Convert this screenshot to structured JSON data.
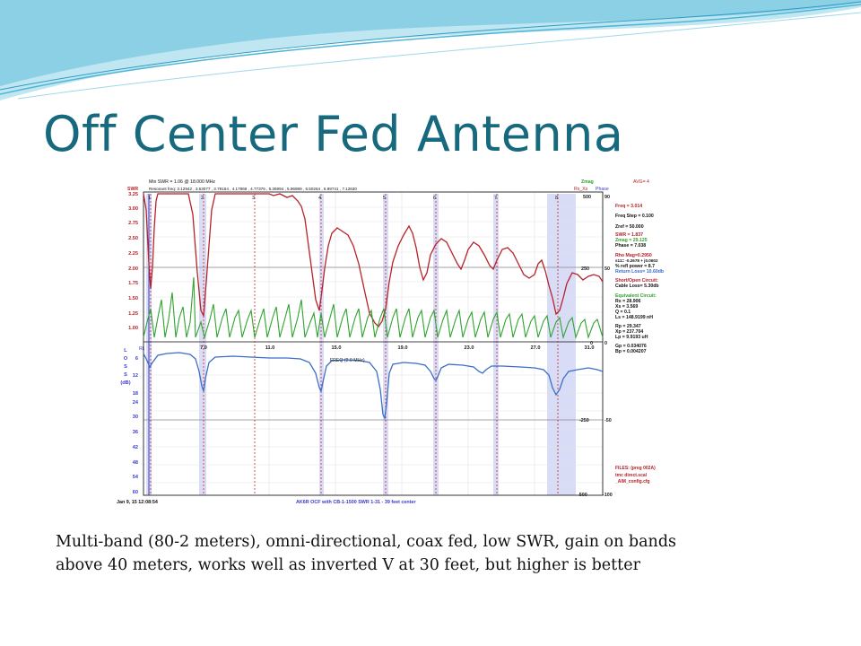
{
  "slide": {
    "title": "Off Center Fed Antenna",
    "caption_line1": "Multi-band (80-2 meters), omni-directional, coax fed, low SWR, gain on bands",
    "caption_line2": "above 40 meters, works well as inverted V at 30 feet, but higher is better"
  },
  "colors": {
    "title": "#17697e",
    "wave_light": "#bfe6f1",
    "wave_mid": "#4eb5d6",
    "swr_trace": "#b62229",
    "zmag_trace": "#2fa32f",
    "rl_trace": "#3a6ec7",
    "band_shade": "#d8dcf6",
    "marker": "#c42a2a"
  },
  "analyzer": {
    "header": {
      "swr_label": "SWR",
      "min_swr": "Min SWR =   1.06 @ 18.000 MHz",
      "resonant": "Resonant freq:  3.12942 , 3.53077 , 3.79164 , 4.17868 , 4.77376 , 5.36994 , 5.96989 , 6.50264 , 6.89741 , 7.12630",
      "zmag_label": "Zmag",
      "rsxs_label": "Rs_Xs",
      "phase_label": "Phase",
      "avg_label": "AVG=  4"
    },
    "swr_ticks": [
      "3.25",
      "3.00",
      "2.75",
      "2.50",
      "2.25",
      "2.00",
      "1.75",
      "1.50",
      "1.25",
      "1.00"
    ],
    "loss_axis_label": [
      "L",
      "O",
      "S",
      "S",
      "(dB)"
    ],
    "loss_ticks": [
      "6",
      "12",
      "18",
      "24",
      "30",
      "36",
      "42",
      "48",
      "54",
      "60"
    ],
    "freq_ticks": [
      "7.0",
      "11.0",
      "15.0",
      "19.0",
      "23.0",
      "27.0",
      "31.0"
    ],
    "freq_label": "FREQ (2.0 MHz)",
    "rl_label": "RL",
    "marker_numbers": [
      "1",
      "2",
      "3",
      "4",
      "5",
      "6",
      "7",
      "8"
    ],
    "right_axis": {
      "z_top": "500",
      "p_top": "90",
      "z_mid": "250",
      "p_mid": "50",
      "z_zero": "0",
      "p_zero": "0",
      "z_low": "-250",
      "p_low": "-50",
      "z_bottom": "-500",
      "p_bottom": "-100"
    },
    "readout": [
      {
        "text": "Freq = 3.014",
        "color": "#b62229"
      },
      {
        "text": "Freq Step = 0.100",
        "color": "#111111"
      },
      {
        "text": "Zref =   50.000",
        "color": "#111111"
      },
      {
        "text": "SWR  =   1.837",
        "color": "#b62229"
      },
      {
        "text": "Zmag =   29.125",
        "color": "#2fa32f"
      },
      {
        "text": "Phase =   7.038",
        "color": "#111111"
      },
      {
        "text": "Rho Mag=0.2950",
        "color": "#b62229"
      },
      {
        "text": "s11= -0.2678 + j0.0602",
        "color": "#111111"
      },
      {
        "text": "% refl power =  8.7",
        "color": "#111111"
      },
      {
        "text": "Return Loss= 10.60db",
        "color": "#3a6ec7"
      },
      {
        "text": "Short/Open Circuit:",
        "color": "#b62229"
      },
      {
        "text": " Cable Loss=  5.30db",
        "color": "#111111"
      },
      {
        "text": "Equivalent Circuit:",
        "color": "#2fa32f"
      },
      {
        "text": "Rs  =   28.906",
        "color": "#111111"
      },
      {
        "text": "Xs  =    3.569",
        "color": "#111111"
      },
      {
        "text": "Q   =   0.1",
        "color": "#111111"
      },
      {
        "text": "Ls  =  148.9199 nH",
        "color": "#111111"
      },
      {
        "text": "Rp  =   29.347",
        "color": "#111111"
      },
      {
        "text": "Xp  =  237.704",
        "color": "#111111"
      },
      {
        "text": "Lp  =    9.9193 uH",
        "color": "#111111"
      },
      {
        "text": "Gp  = 0.034076",
        "color": "#111111"
      },
      {
        "text": "Bp  = 0.004207",
        "color": "#111111"
      }
    ],
    "files": [
      {
        "text": "FILES:  (preg 002A)",
        "color": "#b62229"
      },
      {
        "text": "tmc direct.scal",
        "color": "#b62229"
      },
      {
        "text": "_AIM_config.cfg",
        "color": "#b62229"
      }
    ],
    "footer_date": "Jan 9, 15  12:08:54",
    "footer_title": "AK6R OCF with CB-1-1500 SWR 1-31 - 39 feet center"
  }
}
